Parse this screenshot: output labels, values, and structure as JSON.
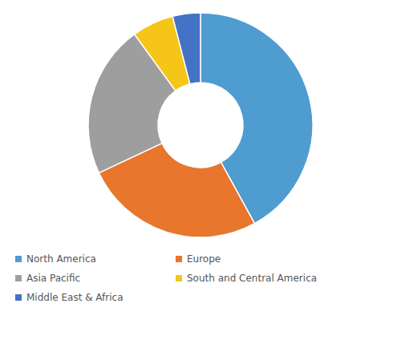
{
  "chart_data": {
    "type": "pie",
    "categories": [
      "North America",
      "Europe",
      "Asia Pacific",
      "South and Central America",
      "Middle East & Africa"
    ],
    "values": [
      42,
      26,
      22,
      6,
      4
    ],
    "colors": [
      "#4E9CD0",
      "#E8762C",
      "#9E9E9E",
      "#F5C518",
      "#4472C4"
    ],
    "legend": "lower left"
  }
}
